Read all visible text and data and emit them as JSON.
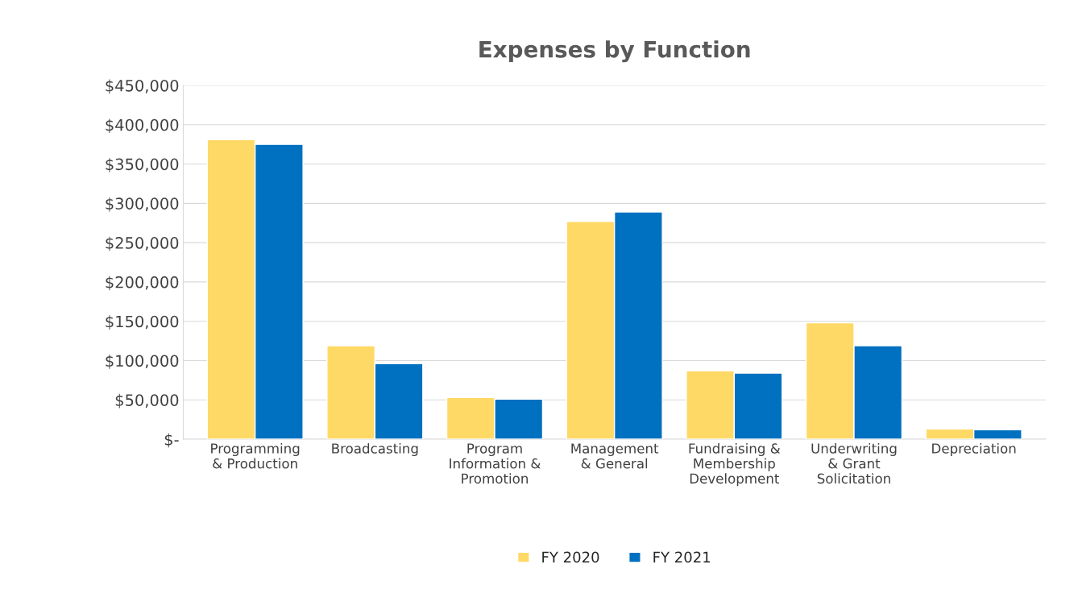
{
  "chart_data": {
    "type": "bar",
    "title": "Expenses by Function",
    "categories": [
      "Programming\n& Production",
      "Broadcasting",
      "Program\nInformation &\nPromotion",
      "Management\n& General",
      "Fundraising &\nMembership\nDevelopment",
      "Underwriting\n& Grant\nSolicitation",
      "Depreciation"
    ],
    "series": [
      {
        "name": "FY 2020",
        "color": "#ffd966",
        "values": [
          381000,
          119000,
          53000,
          277000,
          87000,
          148000,
          13000
        ]
      },
      {
        "name": "FY 2021",
        "color": "#0070c0",
        "values": [
          375000,
          96000,
          51000,
          289000,
          84000,
          119000,
          12000
        ]
      }
    ],
    "ylim": [
      0,
      450000
    ],
    "yticks": [
      {
        "value": 0,
        "label": "$-"
      },
      {
        "value": 50000,
        "label": "$50,000"
      },
      {
        "value": 100000,
        "label": "$100,000"
      },
      {
        "value": 150000,
        "label": "$150,000"
      },
      {
        "value": 200000,
        "label": "$200,000"
      },
      {
        "value": 250000,
        "label": "$250,000"
      },
      {
        "value": 300000,
        "label": "$300,000"
      },
      {
        "value": 350000,
        "label": "$350,000"
      },
      {
        "value": 400000,
        "label": "$400,000"
      },
      {
        "value": 450000,
        "label": "$450,000"
      }
    ],
    "grid": "y",
    "legend": "bottom"
  }
}
